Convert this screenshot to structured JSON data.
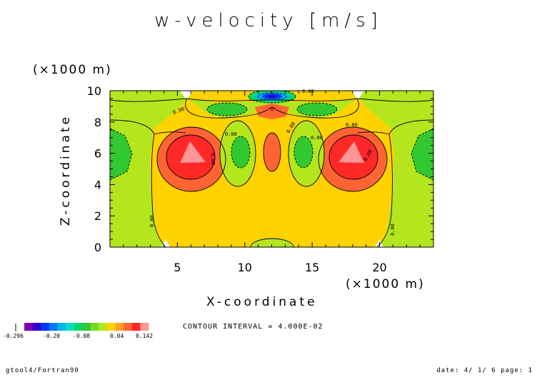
{
  "page_title": "w-velocity [m/s]",
  "chart_data": {
    "type": "contour",
    "title": "w-velocity [m/s]",
    "xlabel": "X-coordinate",
    "ylabel": "Z-coordinate",
    "x_unit": "(×1000 m)",
    "y_unit": "(×1000 m)",
    "x_ticks": [
      "5",
      "10",
      "15",
      "20"
    ],
    "y_ticks": [
      "0",
      "2",
      "4",
      "6",
      "8",
      "10"
    ],
    "xlim": [
      0,
      24
    ],
    "ylim": [
      0,
      10
    ],
    "contour_interval_text": "CONTOUR INTERVAL = 4.000E-02",
    "contour_labels": [
      "0.00",
      "0.00",
      "0.00",
      "0.00",
      "0.00",
      "0.00",
      "0.08",
      "0.08",
      "0.00",
      "0.00"
    ],
    "colorbar": {
      "tick_labels": [
        "-0.296",
        "-0.20",
        "-0.08",
        "0.04",
        "0.142"
      ],
      "colors": [
        "#7a00b0",
        "#3300d0",
        "#0038f0",
        "#0078ff",
        "#00b4f0",
        "#00e0c0",
        "#00d870",
        "#32c832",
        "#78d828",
        "#b4e61e",
        "#ffd200",
        "#ffa028",
        "#ff6432",
        "#ff2828",
        "#ff9696"
      ]
    }
  },
  "footer": {
    "left": "gtool4/Fortran90",
    "right": "date: 4/ 1/ 6 page: 1"
  }
}
